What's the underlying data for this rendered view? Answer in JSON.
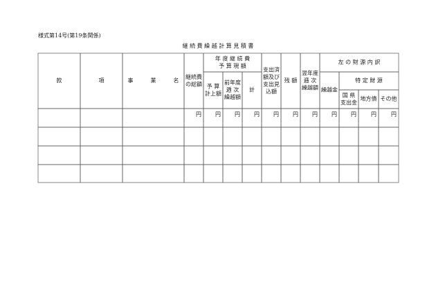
{
  "form_number": "様式第14号(第19条関係)",
  "title": "継 続 費 繰 越 計 算 見 積 書",
  "header_cells": [
    [
      "款"
    ],
    [
      "項"
    ],
    [
      "事 業 名"
    ],
    [
      "継続費",
      "の総額"
    ],
    [
      "年 度 継 続 費",
      "予 算 現 額"
    ],
    [
      "予 算",
      "計上額"
    ],
    [
      "前年度",
      "逓 次",
      "繰越額"
    ],
    [
      "計"
    ],
    [
      "支出済",
      "額及び",
      "支出見",
      "込額"
    ],
    [
      "残 額"
    ],
    [
      "翌年度",
      "逓 次",
      "繰越額"
    ],
    [
      "左 の 財 源 内 訳"
    ],
    [
      "繰越金"
    ],
    [
      "特 定 財 源"
    ],
    [
      "国 県",
      "支出金"
    ],
    [
      "地方債"
    ],
    [
      "その他"
    ]
  ],
  "unit_row": [
    "円",
    "円",
    "円",
    "円",
    "円",
    "円",
    "円",
    "円",
    "円",
    "円",
    "円"
  ]
}
